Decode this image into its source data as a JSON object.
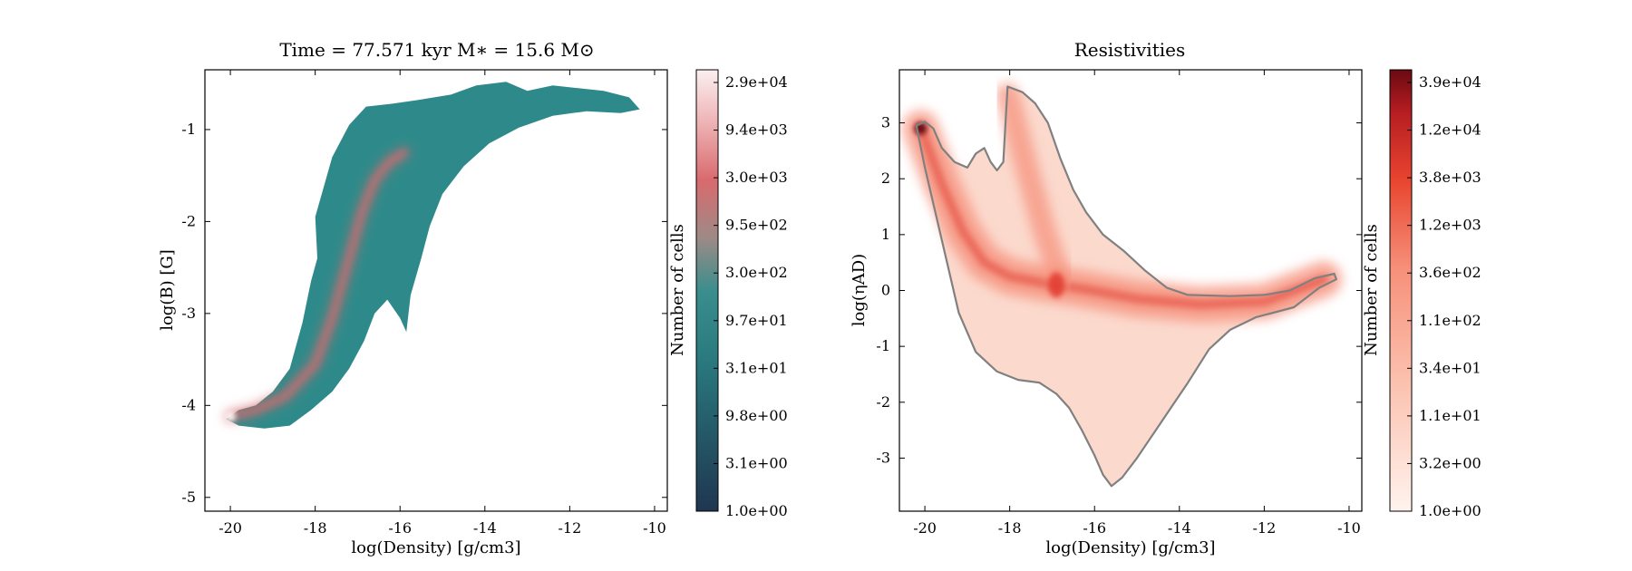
{
  "chart_data": [
    {
      "type": "heatmap",
      "title": "Time = 77.571 kyr    M$_*$ = 15.6 M$_\\odot$",
      "title_display": "Time = 77.571 kyr    M∗ = 15.6 M⊙",
      "xlabel": "log(Density) [g/cm3]",
      "ylabel": "log(B) [G]",
      "xlim": [
        -20.6,
        -9.7
      ],
      "ylim": [
        -5.15,
        -0.35
      ],
      "xticks": [
        -20,
        -18,
        -16,
        -14,
        -12,
        -10
      ],
      "xticklabels": [
        "-20",
        "-18",
        "-16",
        "-14",
        "-12",
        "-10"
      ],
      "yticks": [
        -5,
        -4,
        -3,
        -2,
        -1
      ],
      "yticklabels": [
        "-5",
        "-4",
        "-3",
        "-2",
        "-1"
      ],
      "colormap": {
        "low": "#1f3650",
        "mid": "#2e8a8a",
        "upper": "#d96a6e",
        "high": "#fbeff0"
      },
      "colorbar": {
        "label": "Number of cells",
        "scale": "log",
        "ticklabels": [
          "1.0e+00",
          "3.1e+00",
          "9.8e+00",
          "3.1e+01",
          "9.7e+01",
          "3.0e+02",
          "9.5e+02",
          "3.0e+03",
          "9.4e+03",
          "2.9e+04"
        ]
      },
      "region_outline": [
        [
          -20.1,
          -4.15
        ],
        [
          -19.8,
          -4.05
        ],
        [
          -19.4,
          -4.0
        ],
        [
          -19.0,
          -3.85
        ],
        [
          -18.6,
          -3.6
        ],
        [
          -18.3,
          -3.1
        ],
        [
          -18.1,
          -2.65
        ],
        [
          -17.95,
          -2.4
        ],
        [
          -18.0,
          -1.95
        ],
        [
          -17.6,
          -1.3
        ],
        [
          -17.2,
          -0.95
        ],
        [
          -16.8,
          -0.75
        ],
        [
          -16.2,
          -0.72
        ],
        [
          -15.6,
          -0.68
        ],
        [
          -14.8,
          -0.62
        ],
        [
          -14.2,
          -0.52
        ],
        [
          -13.5,
          -0.48
        ],
        [
          -13.0,
          -0.58
        ],
        [
          -12.4,
          -0.52
        ],
        [
          -11.8,
          -0.55
        ],
        [
          -11.2,
          -0.58
        ],
        [
          -10.6,
          -0.65
        ],
        [
          -10.35,
          -0.78
        ],
        [
          -10.8,
          -0.82
        ],
        [
          -11.6,
          -0.8
        ],
        [
          -12.4,
          -0.85
        ],
        [
          -13.2,
          -0.98
        ],
        [
          -13.9,
          -1.15
        ],
        [
          -14.5,
          -1.4
        ],
        [
          -15.0,
          -1.7
        ],
        [
          -15.3,
          -2.05
        ],
        [
          -15.5,
          -2.4
        ],
        [
          -15.75,
          -2.8
        ],
        [
          -15.85,
          -3.2
        ],
        [
          -16.0,
          -3.05
        ],
        [
          -16.3,
          -2.85
        ],
        [
          -16.6,
          -3.0
        ],
        [
          -16.85,
          -3.3
        ],
        [
          -17.2,
          -3.6
        ],
        [
          -17.6,
          -3.85
        ],
        [
          -18.1,
          -4.05
        ],
        [
          -18.6,
          -4.22
        ],
        [
          -19.2,
          -4.25
        ],
        [
          -19.8,
          -4.22
        ],
        [
          -20.1,
          -4.15
        ]
      ],
      "ridge": [
        [
          -20.0,
          -4.12
        ],
        [
          -19.4,
          -4.05
        ],
        [
          -18.7,
          -3.9
        ],
        [
          -18.0,
          -3.55
        ],
        [
          -17.6,
          -3.05
        ],
        [
          -17.2,
          -2.4
        ],
        [
          -16.9,
          -1.9
        ],
        [
          -16.6,
          -1.55
        ],
        [
          -16.25,
          -1.35
        ],
        [
          -15.9,
          -1.25
        ]
      ],
      "hotspot": [
        -20.0,
        -4.12
      ]
    },
    {
      "type": "heatmap",
      "title": "Resistivities",
      "xlabel": "log(Density) [g/cm3]",
      "ylabel": "log($\\eta_{\\rm AD}$)",
      "ylabel_display": "log(ηAD)",
      "xlim": [
        -20.6,
        -9.7
      ],
      "ylim": [
        -3.95,
        3.95
      ],
      "xticks": [
        -20,
        -18,
        -16,
        -14,
        -12,
        -10
      ],
      "xticklabels": [
        "-20",
        "-18",
        "-16",
        "-14",
        "-12",
        "-10"
      ],
      "yticks": [
        -3,
        -2,
        -1,
        0,
        1,
        2,
        3
      ],
      "yticklabels": [
        "-3",
        "-2",
        "-1",
        "0",
        "1",
        "2",
        "3"
      ],
      "colormap": {
        "low": "#fdeee8",
        "mid": "#f6907a",
        "upper": "#e0352a",
        "high": "#6b0a12"
      },
      "colorbar": {
        "label": "Number of cells",
        "scale": "log",
        "ticklabels": [
          "1.0e+00",
          "3.2e+00",
          "1.1e+01",
          "3.4e+01",
          "1.1e+02",
          "3.6e+02",
          "1.2e+03",
          "3.8e+03",
          "1.2e+04",
          "3.9e+04"
        ]
      },
      "outline_color": "#808080",
      "region_outline": [
        [
          -20.2,
          2.95
        ],
        [
          -20.0,
          3.02
        ],
        [
          -19.8,
          2.9
        ],
        [
          -19.6,
          2.55
        ],
        [
          -19.3,
          2.3
        ],
        [
          -19.0,
          2.2
        ],
        [
          -18.8,
          2.45
        ],
        [
          -18.6,
          2.55
        ],
        [
          -18.45,
          2.3
        ],
        [
          -18.3,
          2.15
        ],
        [
          -18.15,
          2.3
        ],
        [
          -18.05,
          3.65
        ],
        [
          -17.7,
          3.55
        ],
        [
          -17.4,
          3.35
        ],
        [
          -17.1,
          3.0
        ],
        [
          -16.8,
          2.35
        ],
        [
          -16.5,
          1.8
        ],
        [
          -16.2,
          1.4
        ],
        [
          -15.8,
          1.0
        ],
        [
          -15.3,
          0.7
        ],
        [
          -14.8,
          0.35
        ],
        [
          -14.3,
          0.05
        ],
        [
          -13.8,
          -0.08
        ],
        [
          -12.8,
          -0.1
        ],
        [
          -12.0,
          -0.08
        ],
        [
          -11.4,
          0.0
        ],
        [
          -10.8,
          0.22
        ],
        [
          -10.35,
          0.3
        ],
        [
          -10.3,
          0.2
        ],
        [
          -10.7,
          0.05
        ],
        [
          -11.3,
          -0.3
        ],
        [
          -12.2,
          -0.48
        ],
        [
          -12.8,
          -0.7
        ],
        [
          -13.3,
          -1.05
        ],
        [
          -13.8,
          -1.65
        ],
        [
          -14.2,
          -2.1
        ],
        [
          -14.6,
          -2.55
        ],
        [
          -15.0,
          -3.0
        ],
        [
          -15.35,
          -3.35
        ],
        [
          -15.6,
          -3.5
        ],
        [
          -15.8,
          -3.3
        ],
        [
          -16.0,
          -2.95
        ],
        [
          -16.3,
          -2.5
        ],
        [
          -16.6,
          -2.1
        ],
        [
          -16.9,
          -1.85
        ],
        [
          -17.3,
          -1.65
        ],
        [
          -17.8,
          -1.6
        ],
        [
          -18.3,
          -1.45
        ],
        [
          -18.8,
          -1.1
        ],
        [
          -19.2,
          -0.4
        ],
        [
          -19.6,
          0.9
        ],
        [
          -20.0,
          2.2
        ],
        [
          -20.2,
          2.95
        ]
      ],
      "ridge": [
        [
          -20.1,
          2.9
        ],
        [
          -19.6,
          1.9
        ],
        [
          -19.1,
          1.05
        ],
        [
          -18.6,
          0.5
        ],
        [
          -18.0,
          0.25
        ],
        [
          -17.3,
          0.15
        ],
        [
          -16.9,
          0.1
        ],
        [
          -16.2,
          0.02
        ],
        [
          -15.0,
          -0.15
        ],
        [
          -13.5,
          -0.25
        ],
        [
          -12.0,
          -0.2
        ],
        [
          -10.6,
          0.2
        ]
      ],
      "branch": [
        [
          -18.05,
          3.5
        ],
        [
          -17.6,
          2.2
        ],
        [
          -17.2,
          1.1
        ],
        [
          -16.8,
          0.2
        ]
      ],
      "hotspot": [
        -20.1,
        2.9
      ],
      "hotspot2": [
        -16.9,
        0.1
      ]
    }
  ]
}
